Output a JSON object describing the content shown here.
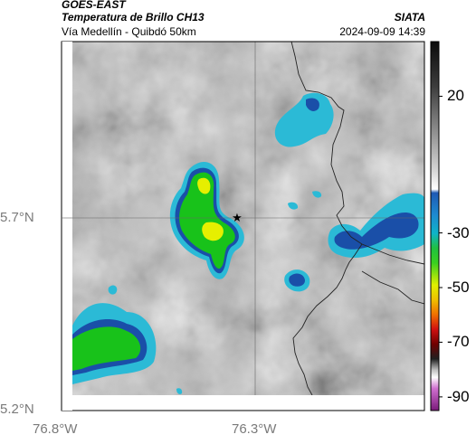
{
  "header": {
    "product": "GOES-EAST",
    "title": "Temperatura de Brillo CH13",
    "subtitle": "Vía Medellín - Quibdó 50km",
    "organization": "SIATA",
    "datetime": "2024-09-09 14:39"
  },
  "axes": {
    "lat_labels": [
      "5.7°N",
      "5.2°N"
    ],
    "lon_labels": [
      "76.8°W",
      "76.3°W"
    ]
  },
  "colorbar": {
    "ticks": [
      "20",
      "-30",
      "-50",
      "-70",
      "-90"
    ],
    "tick_values": [
      20,
      -30,
      -50,
      -70,
      -90
    ],
    "range": [
      -95,
      40
    ]
  },
  "colors": {
    "gray_light": "#d4d4d4",
    "gray_dark": "#6e6e6e",
    "cyan": "#2bbad6",
    "blue": "#1a4fa8",
    "green": "#18c21a",
    "yellow": "#e6ef00"
  }
}
